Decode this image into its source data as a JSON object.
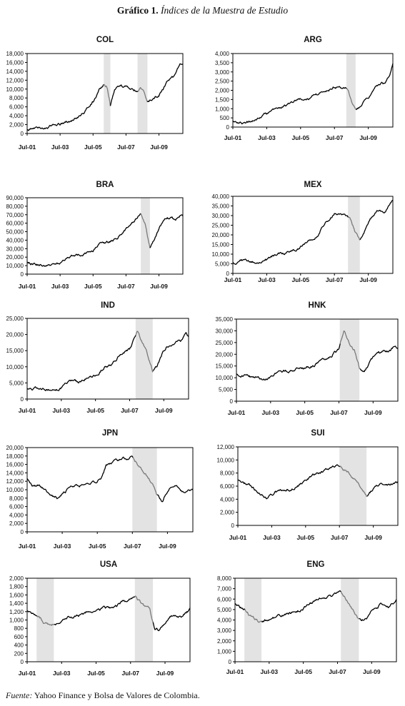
{
  "figure": {
    "title_prefix": "Gráfico 1.",
    "title_rest": "Índices de la Muestra de Estudio",
    "source_label": "Fuente:",
    "source_text": "Yahoo Finance y Bolsa de Valores de Colombia."
  },
  "chart_data": [
    {
      "type": "line",
      "title": "COL",
      "x_ticks": [
        "Jul-01",
        "Jul-03",
        "Jul-05",
        "Jul-07",
        "Jul-09"
      ],
      "xlim": [
        2001.5,
        2010.95
      ],
      "ylim": [
        0,
        18000
      ],
      "y_ticks": [
        "0",
        "2,000",
        "4,000",
        "6,000",
        "8,000",
        "10,000",
        "12,000",
        "14,000",
        "16,000",
        "18,000"
      ],
      "shaded": [
        [
          2006.15,
          2006.55
        ],
        [
          2008.2,
          2008.8
        ]
      ],
      "x": [
        2001.5,
        2002.0,
        2002.5,
        2003.0,
        2003.5,
        2004.0,
        2004.5,
        2005.0,
        2005.5,
        2005.9,
        2006.15,
        2006.35,
        2006.55,
        2006.8,
        2007.0,
        2007.5,
        2007.9,
        2008.2,
        2008.4,
        2008.6,
        2008.8,
        2009.0,
        2009.5,
        2010.0,
        2010.5,
        2010.8,
        2010.95
      ],
      "values": [
        1000,
        1000,
        1300,
        1700,
        2100,
        2800,
        3500,
        4800,
        7000,
        10000,
        11000,
        10500,
        6500,
        9500,
        10500,
        10500,
        10200,
        9500,
        10000,
        9000,
        7000,
        7500,
        8500,
        11500,
        13000,
        15500,
        16000
      ]
    },
    {
      "type": "line",
      "title": "ARG",
      "x_ticks": [
        "Jul-01",
        "Jul-03",
        "Jul-05",
        "Jul-07",
        "Jul-09"
      ],
      "xlim": [
        2001.5,
        2010.95
      ],
      "ylim": [
        0,
        4000
      ],
      "y_ticks": [
        "0",
        "500",
        "1,000",
        "1,500",
        "2,000",
        "2,500",
        "3,000",
        "3,500",
        "4,000"
      ],
      "shaded": [
        [
          2008.2,
          2008.75
        ]
      ],
      "x": [
        2001.5,
        2002.0,
        2002.5,
        2003.0,
        2003.5,
        2004.0,
        2004.5,
        2005.0,
        2005.5,
        2006.0,
        2006.5,
        2007.0,
        2007.5,
        2008.0,
        2008.3,
        2008.55,
        2008.8,
        2009.2,
        2009.5,
        2010.0,
        2010.5,
        2010.8,
        2010.95
      ],
      "values": [
        350,
        250,
        300,
        500,
        700,
        950,
        1100,
        1400,
        1500,
        1600,
        1750,
        2000,
        2200,
        2100,
        2050,
        1300,
        900,
        1300,
        1600,
        2300,
        2400,
        3000,
        3500
      ]
    },
    {
      "type": "line",
      "title": "BRA",
      "x_ticks": [
        "Jul-01",
        "Jul-03",
        "Jul-05",
        "Jul-07",
        "Jul-09"
      ],
      "xlim": [
        2001.5,
        2010.95
      ],
      "ylim": [
        0,
        90000
      ],
      "y_ticks": [
        "0",
        "10,000",
        "20,000",
        "30,000",
        "40,000",
        "50,000",
        "60,000",
        "70,000",
        "80,000",
        "90,000"
      ],
      "shaded": [
        [
          2008.4,
          2008.95
        ]
      ],
      "x": [
        2001.5,
        2002.0,
        2002.5,
        2003.0,
        2003.5,
        2004.0,
        2004.5,
        2005.0,
        2005.5,
        2006.0,
        2006.5,
        2007.0,
        2007.5,
        2008.0,
        2008.4,
        2008.7,
        2008.95,
        2009.2,
        2009.5,
        2010.0,
        2010.5,
        2010.8,
        2010.95
      ],
      "values": [
        13000,
        12000,
        10000,
        11000,
        13000,
        21000,
        22000,
        25000,
        28000,
        36000,
        38000,
        43000,
        54000,
        63000,
        72000,
        55000,
        32000,
        40000,
        55000,
        68000,
        65000,
        70000,
        68000
      ]
    },
    {
      "type": "line",
      "title": "MEX",
      "x_ticks": [
        "Jul-01",
        "Jul-03",
        "Jul-05",
        "Jul-07",
        "Jul-09"
      ],
      "xlim": [
        2001.5,
        2010.95
      ],
      "ylim": [
        0,
        40000
      ],
      "y_ticks": [
        "0",
        "5,000",
        "10,000",
        "15,000",
        "20,000",
        "25,000",
        "30,000",
        "35,000",
        "40,000"
      ],
      "shaded": [
        [
          2008.3,
          2009.0
        ]
      ],
      "x": [
        2001.5,
        2002.0,
        2002.5,
        2003.0,
        2003.5,
        2004.0,
        2004.5,
        2005.0,
        2005.5,
        2006.0,
        2006.5,
        2007.0,
        2007.5,
        2008.0,
        2008.4,
        2008.7,
        2009.0,
        2009.3,
        2009.6,
        2010.0,
        2010.5,
        2010.8,
        2010.95
      ],
      "values": [
        5500,
        6500,
        6200,
        6000,
        7000,
        9500,
        10500,
        12000,
        14000,
        18000,
        20000,
        27000,
        31000,
        30000,
        29000,
        22000,
        17000,
        22000,
        28000,
        32000,
        32000,
        36000,
        38000
      ]
    },
    {
      "type": "line",
      "title": "IND",
      "x_ticks": [
        "Jul-01",
        "Jul-03",
        "Jul-05",
        "Jul-07",
        "Jul-09"
      ],
      "xlim": [
        2001.5,
        2010.95
      ],
      "ylim": [
        0,
        25000
      ],
      "y_ticks": [
        "0",
        "5,000",
        "10,000",
        "15,000",
        "20,000",
        "25,000"
      ],
      "shaded": [
        [
          2007.85,
          2008.85
        ]
      ],
      "x": [
        2001.5,
        2002.0,
        2002.5,
        2003.0,
        2003.5,
        2004.0,
        2004.5,
        2005.0,
        2005.5,
        2006.0,
        2006.5,
        2007.0,
        2007.5,
        2007.95,
        2008.3,
        2008.6,
        2008.85,
        2009.1,
        2009.4,
        2009.7,
        2010.0,
        2010.5,
        2010.8,
        2010.95
      ],
      "values": [
        3000,
        3200,
        3000,
        3000,
        3800,
        5500,
        5200,
        6500,
        7500,
        10000,
        11000,
        14000,
        15500,
        20500,
        17000,
        13000,
        8500,
        10000,
        14000,
        16500,
        17000,
        18000,
        20500,
        19500
      ]
    },
    {
      "type": "line",
      "title": "HNK",
      "x_ticks": [
        "Jul-01",
        "Jul-03",
        "Jul-05",
        "Jul-07",
        "Jul-09"
      ],
      "xlim": [
        2001.5,
        2010.95
      ],
      "ylim": [
        0,
        35000
      ],
      "y_ticks": [
        "0",
        "5,000",
        "10,000",
        "15,000",
        "20,000",
        "25,000",
        "30,000",
        "35,000"
      ],
      "shaded": [
        [
          2007.55,
          2008.7
        ]
      ],
      "x": [
        2001.5,
        2002.0,
        2002.5,
        2003.0,
        2003.3,
        2003.8,
        2004.5,
        2005.0,
        2005.5,
        2006.0,
        2006.5,
        2007.0,
        2007.5,
        2007.8,
        2008.1,
        2008.4,
        2008.7,
        2009.0,
        2009.4,
        2010.0,
        2010.5,
        2010.8,
        2010.95
      ],
      "values": [
        12000,
        11000,
        10000,
        9500,
        9000,
        12000,
        13000,
        14000,
        14500,
        15500,
        17000,
        19500,
        22000,
        31000,
        25000,
        22000,
        14000,
        13000,
        18000,
        21000,
        21500,
        24000,
        23000
      ]
    },
    {
      "type": "line",
      "title": "JPN",
      "x_ticks": [
        "Jul-01",
        "Jul-03",
        "Jul-05",
        "Jul-07",
        "Jul-09"
      ],
      "xlim": [
        2001.5,
        2010.95
      ],
      "ylim": [
        0,
        20000
      ],
      "y_ticks": [
        "0",
        "2,000",
        "4,000",
        "6,000",
        "8,000",
        "10,000",
        "12,000",
        "14,000",
        "16,000",
        "18,000",
        "20,000"
      ],
      "shaded": [
        [
          2007.5,
          2008.9
        ]
      ],
      "x": [
        2001.5,
        2001.8,
        2002.2,
        2002.6,
        2003.0,
        2003.3,
        2003.8,
        2004.3,
        2004.8,
        2005.3,
        2005.7,
        2006.0,
        2006.4,
        2006.8,
        2007.2,
        2007.5,
        2007.8,
        2008.2,
        2008.6,
        2008.9,
        2009.2,
        2009.6,
        2010.0,
        2010.5,
        2010.95
      ],
      "values": [
        12500,
        10500,
        11000,
        9500,
        8500,
        8000,
        10000,
        11500,
        11000,
        11500,
        13000,
        16000,
        16500,
        17000,
        17500,
        18000,
        16000,
        14000,
        12000,
        8500,
        7500,
        10000,
        10500,
        9500,
        10000
      ]
    },
    {
      "type": "line",
      "title": "SUI",
      "x_ticks": [
        "Jul-01",
        "Jul-03",
        "Jul-05",
        "Jul-07",
        "Jul-09"
      ],
      "xlim": [
        2001.5,
        2010.95
      ],
      "ylim": [
        0,
        12000
      ],
      "y_ticks": [
        "0",
        "2,000",
        "4,000",
        "6,000",
        "8,000",
        "10,000",
        "12,000"
      ],
      "shaded": [
        [
          2007.5,
          2009.1
        ]
      ],
      "x": [
        2001.5,
        2001.9,
        2002.3,
        2002.7,
        2003.2,
        2003.7,
        2004.2,
        2004.8,
        2005.3,
        2005.8,
        2006.3,
        2006.8,
        2007.3,
        2007.6,
        2008.0,
        2008.5,
        2009.1,
        2009.5,
        2010.0,
        2010.5,
        2010.95
      ],
      "values": [
        7000,
        6500,
        6000,
        5000,
        4000,
        5000,
        5500,
        5700,
        6500,
        7500,
        8000,
        8500,
        9200,
        9000,
        8200,
        6800,
        4500,
        5500,
        6500,
        6300,
        6500
      ]
    },
    {
      "type": "line",
      "title": "USA",
      "x_ticks": [
        "Jul-01",
        "Jul-03",
        "Jul-05",
        "Jul-07",
        "Jul-09"
      ],
      "xlim": [
        2001.5,
        2010.95
      ],
      "ylim": [
        0,
        2000
      ],
      "y_ticks": [
        "0",
        "200",
        "400",
        "600",
        "800",
        "1,000",
        "1,200",
        "1,400",
        "1,600",
        "1,800",
        "2,000"
      ],
      "shaded": [
        [
          2002.05,
          2003.05
        ],
        [
          2007.75,
          2008.8
        ]
      ],
      "x": [
        2001.5,
        2001.8,
        2002.1,
        2002.5,
        2002.9,
        2003.1,
        2003.5,
        2004.0,
        2004.6,
        2005.0,
        2005.5,
        2006.0,
        2006.5,
        2007.0,
        2007.5,
        2007.8,
        2008.2,
        2008.6,
        2008.9,
        2009.2,
        2009.6,
        2010.0,
        2010.5,
        2010.95
      ],
      "values": [
        1200,
        1100,
        1150,
        950,
        850,
        900,
        1000,
        1100,
        1100,
        1200,
        1220,
        1280,
        1300,
        1420,
        1500,
        1520,
        1350,
        1250,
        800,
        750,
        1000,
        1150,
        1100,
        1250
      ]
    },
    {
      "type": "line",
      "title": "ENG",
      "x_ticks": [
        "Jul-01",
        "Jul-03",
        "Jul-05",
        "Jul-07",
        "Jul-09"
      ],
      "xlim": [
        2001.5,
        2010.95
      ],
      "ylim": [
        0,
        8000
      ],
      "y_ticks": [
        "0",
        "1,000",
        "2,000",
        "3,000",
        "4,000",
        "5,000",
        "6,000",
        "7,000",
        "8,000"
      ],
      "shaded": [
        [
          2002.05,
          2003.05
        ],
        [
          2007.7,
          2008.75
        ]
      ],
      "x": [
        2001.5,
        2001.8,
        2002.1,
        2002.5,
        2002.9,
        2003.1,
        2003.6,
        2004.2,
        2004.8,
        2005.3,
        2005.8,
        2006.3,
        2006.8,
        2007.3,
        2007.7,
        2008.0,
        2008.4,
        2008.75,
        2009.1,
        2009.5,
        2010.0,
        2010.5,
        2010.95
      ],
      "values": [
        5500,
        5200,
        5000,
        4200,
        3800,
        3700,
        4200,
        4400,
        4700,
        5000,
        5500,
        6000,
        6200,
        6500,
        6600,
        6000,
        5000,
        4000,
        4000,
        4800,
        5500,
        5300,
        5900
      ]
    }
  ]
}
